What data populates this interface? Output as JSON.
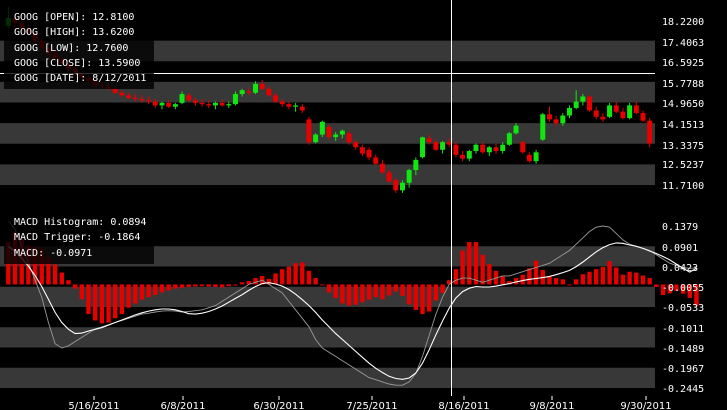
{
  "symbol": "GOOG",
  "colors": {
    "background": "#000000",
    "band": "#383838",
    "up": "#11e611",
    "down": "#e60000",
    "hist": "#e60000",
    "macd_line": "#ffffff",
    "trigger_line": "#9a9a9a",
    "crosshair": "#ffffff",
    "text": "#ffffff"
  },
  "price_panel": {
    "labels": [
      "GOOG [OPEN]: 12.8100",
      "GOOG [HIGH]: 13.6200",
      "GOOG [LOW]: 12.7600",
      "GOOG [CLOSE]: 13.5900",
      "GOOG [DATE]: 8/12/2011"
    ]
  },
  "macd_panel": {
    "labels": [
      "MACD Histogram: 0.0894",
      "MACD Trigger: -0.1864",
      "MACD: -0.0971"
    ]
  },
  "chart_data": [
    {
      "type": "candlestick",
      "ylim": [
        11.2,
        18.5
      ],
      "y_ticks": [
        "18.2200",
        "17.4063",
        "16.5925",
        "15.7788",
        "14.9650",
        "14.1513",
        "13.3375",
        "12.5237",
        "11.7100"
      ],
      "x_ticks": [
        "5/16/2011",
        "6/8/2011",
        "6/30/2011",
        "7/25/2011",
        "8/16/2011",
        "9/8/2011",
        "9/30/2011"
      ],
      "candles": [
        {
          "o": 18.0,
          "h": 18.7,
          "l": 17.9,
          "c": 18.3
        },
        {
          "o": 18.3,
          "h": 18.5,
          "l": 17.9,
          "c": 18.1
        },
        {
          "o": 18.1,
          "h": 18.2,
          "l": 17.8,
          "c": 17.9
        },
        {
          "o": 17.9,
          "h": 18.0,
          "l": 17.6,
          "c": 17.7
        },
        {
          "o": 17.7,
          "h": 17.8,
          "l": 17.3,
          "c": 17.4
        },
        {
          "o": 17.4,
          "h": 17.5,
          "l": 17.0,
          "c": 17.1
        },
        {
          "o": 17.1,
          "h": 17.2,
          "l": 16.8,
          "c": 16.9
        },
        {
          "o": 16.9,
          "h": 17.0,
          "l": 16.6,
          "c": 16.7
        },
        {
          "o": 16.7,
          "h": 16.8,
          "l": 16.4,
          "c": 16.5
        },
        {
          "o": 16.5,
          "h": 16.6,
          "l": 16.2,
          "c": 16.3
        },
        {
          "o": 16.3,
          "h": 16.4,
          "l": 16.0,
          "c": 16.1
        },
        {
          "o": 16.1,
          "h": 16.2,
          "l": 15.85,
          "c": 15.95
        },
        {
          "o": 15.95,
          "h": 16.05,
          "l": 15.7,
          "c": 15.8
        },
        {
          "o": 15.8,
          "h": 15.9,
          "l": 15.55,
          "c": 15.65
        },
        {
          "o": 15.65,
          "h": 15.8,
          "l": 15.5,
          "c": 15.6
        },
        {
          "o": 15.6,
          "h": 15.7,
          "l": 15.45,
          "c": 15.5
        },
        {
          "o": 15.5,
          "h": 15.6,
          "l": 15.3,
          "c": 15.35
        },
        {
          "o": 15.35,
          "h": 15.45,
          "l": 15.2,
          "c": 15.25
        },
        {
          "o": 15.25,
          "h": 15.35,
          "l": 15.1,
          "c": 15.15
        },
        {
          "o": 15.15,
          "h": 15.3,
          "l": 15.0,
          "c": 15.1
        },
        {
          "o": 15.1,
          "h": 15.25,
          "l": 14.95,
          "c": 15.05
        },
        {
          "o": 15.05,
          "h": 15.2,
          "l": 14.9,
          "c": 15.0
        },
        {
          "o": 15.0,
          "h": 15.1,
          "l": 14.75,
          "c": 14.85
        },
        {
          "o": 14.85,
          "h": 15.0,
          "l": 14.7,
          "c": 14.95
        },
        {
          "o": 14.95,
          "h": 15.05,
          "l": 14.75,
          "c": 14.8
        },
        {
          "o": 14.8,
          "h": 14.95,
          "l": 14.7,
          "c": 14.9
        },
        {
          "o": 14.95,
          "h": 15.4,
          "l": 14.9,
          "c": 15.3
        },
        {
          "o": 15.25,
          "h": 15.35,
          "l": 15.0,
          "c": 15.05
        },
        {
          "o": 15.05,
          "h": 15.15,
          "l": 14.85,
          "c": 14.95
        },
        {
          "o": 14.95,
          "h": 15.1,
          "l": 14.8,
          "c": 14.9
        },
        {
          "o": 14.9,
          "h": 15.05,
          "l": 14.75,
          "c": 14.85
        },
        {
          "o": 14.85,
          "h": 15.0,
          "l": 14.7,
          "c": 14.95
        },
        {
          "o": 14.95,
          "h": 15.1,
          "l": 14.8,
          "c": 14.85
        },
        {
          "o": 14.85,
          "h": 15.0,
          "l": 14.75,
          "c": 14.9
        },
        {
          "o": 14.9,
          "h": 15.4,
          "l": 14.85,
          "c": 15.3
        },
        {
          "o": 15.3,
          "h": 15.5,
          "l": 15.2,
          "c": 15.45
        },
        {
          "o": 15.4,
          "h": 15.55,
          "l": 15.25,
          "c": 15.35
        },
        {
          "o": 15.35,
          "h": 15.8,
          "l": 15.3,
          "c": 15.7
        },
        {
          "o": 15.7,
          "h": 15.85,
          "l": 15.45,
          "c": 15.5
        },
        {
          "o": 15.5,
          "h": 15.6,
          "l": 15.2,
          "c": 15.25
        },
        {
          "o": 15.25,
          "h": 15.35,
          "l": 14.95,
          "c": 15.0
        },
        {
          "o": 15.0,
          "h": 15.1,
          "l": 14.8,
          "c": 14.9
        },
        {
          "o": 14.9,
          "h": 15.0,
          "l": 14.7,
          "c": 14.8
        },
        {
          "o": 14.8,
          "h": 14.95,
          "l": 14.6,
          "c": 14.85
        },
        {
          "o": 14.8,
          "h": 14.9,
          "l": 14.55,
          "c": 14.65
        },
        {
          "o": 14.3,
          "h": 14.4,
          "l": 13.3,
          "c": 13.4
        },
        {
          "o": 13.4,
          "h": 13.75,
          "l": 13.35,
          "c": 13.7
        },
        {
          "o": 13.7,
          "h": 14.25,
          "l": 13.6,
          "c": 14.2
        },
        {
          "o": 14.0,
          "h": 14.1,
          "l": 13.5,
          "c": 13.6
        },
        {
          "o": 13.6,
          "h": 13.8,
          "l": 13.45,
          "c": 13.7
        },
        {
          "o": 13.7,
          "h": 13.9,
          "l": 13.55,
          "c": 13.85
        },
        {
          "o": 13.75,
          "h": 13.85,
          "l": 13.3,
          "c": 13.4
        },
        {
          "o": 13.4,
          "h": 13.5,
          "l": 13.1,
          "c": 13.2
        },
        {
          "o": 13.2,
          "h": 13.3,
          "l": 12.85,
          "c": 12.95
        },
        {
          "o": 13.1,
          "h": 13.2,
          "l": 12.7,
          "c": 12.8
        },
        {
          "o": 12.8,
          "h": 12.9,
          "l": 12.5,
          "c": 12.55
        },
        {
          "o": 12.55,
          "h": 12.7,
          "l": 12.15,
          "c": 12.2
        },
        {
          "o": 12.2,
          "h": 12.3,
          "l": 11.8,
          "c": 11.85
        },
        {
          "o": 11.9,
          "h": 12.0,
          "l": 11.4,
          "c": 11.5
        },
        {
          "o": 11.5,
          "h": 11.9,
          "l": 11.4,
          "c": 11.8
        },
        {
          "o": 11.8,
          "h": 12.35,
          "l": 11.6,
          "c": 12.3
        },
        {
          "o": 12.3,
          "h": 12.8,
          "l": 12.1,
          "c": 12.7
        },
        {
          "o": 12.81,
          "h": 13.62,
          "l": 12.76,
          "c": 13.59
        },
        {
          "o": 13.55,
          "h": 13.7,
          "l": 13.3,
          "c": 13.4
        },
        {
          "o": 13.4,
          "h": 13.5,
          "l": 13.05,
          "c": 13.1
        },
        {
          "o": 13.1,
          "h": 13.45,
          "l": 12.95,
          "c": 13.4
        },
        {
          "o": 13.4,
          "h": 13.55,
          "l": 13.2,
          "c": 13.3
        },
        {
          "o": 13.3,
          "h": 13.4,
          "l": 12.8,
          "c": 12.9
        },
        {
          "o": 12.9,
          "h": 13.05,
          "l": 12.65,
          "c": 12.75
        },
        {
          "o": 12.75,
          "h": 13.1,
          "l": 12.65,
          "c": 13.05
        },
        {
          "o": 13.05,
          "h": 13.35,
          "l": 12.95,
          "c": 13.3
        },
        {
          "o": 13.3,
          "h": 13.4,
          "l": 12.95,
          "c": 13.0
        },
        {
          "o": 13.0,
          "h": 13.25,
          "l": 12.85,
          "c": 13.2
        },
        {
          "o": 13.2,
          "h": 13.35,
          "l": 12.95,
          "c": 13.05
        },
        {
          "o": 13.05,
          "h": 13.4,
          "l": 12.95,
          "c": 13.3
        },
        {
          "o": 13.3,
          "h": 13.8,
          "l": 13.25,
          "c": 13.75
        },
        {
          "o": 13.75,
          "h": 14.15,
          "l": 13.7,
          "c": 14.05
        },
        {
          "o": 13.4,
          "h": 13.45,
          "l": 12.95,
          "c": 13.0
        },
        {
          "o": 12.9,
          "h": 13.0,
          "l": 12.6,
          "c": 12.65
        },
        {
          "o": 12.65,
          "h": 13.1,
          "l": 12.55,
          "c": 13.0
        },
        {
          "o": 13.5,
          "h": 14.55,
          "l": 13.45,
          "c": 14.5
        },
        {
          "o": 14.5,
          "h": 14.8,
          "l": 14.2,
          "c": 14.3
        },
        {
          "o": 14.3,
          "h": 14.45,
          "l": 14.05,
          "c": 14.15
        },
        {
          "o": 14.15,
          "h": 14.55,
          "l": 14.05,
          "c": 14.45
        },
        {
          "o": 14.45,
          "h": 14.85,
          "l": 14.35,
          "c": 14.75
        },
        {
          "o": 14.75,
          "h": 15.45,
          "l": 14.7,
          "c": 15.0
        },
        {
          "o": 15.0,
          "h": 15.3,
          "l": 14.85,
          "c": 15.2
        },
        {
          "o": 15.2,
          "h": 15.25,
          "l": 14.6,
          "c": 14.65
        },
        {
          "o": 14.65,
          "h": 14.8,
          "l": 14.3,
          "c": 14.4
        },
        {
          "o": 14.4,
          "h": 14.55,
          "l": 14.2,
          "c": 14.3
        },
        {
          "o": 14.4,
          "h": 14.95,
          "l": 14.35,
          "c": 14.85
        },
        {
          "o": 14.85,
          "h": 15.0,
          "l": 14.55,
          "c": 14.6
        },
        {
          "o": 14.6,
          "h": 14.75,
          "l": 14.3,
          "c": 14.35
        },
        {
          "o": 14.35,
          "h": 14.95,
          "l": 14.3,
          "c": 14.85
        },
        {
          "o": 14.85,
          "h": 15.0,
          "l": 14.5,
          "c": 14.55
        },
        {
          "o": 14.55,
          "h": 14.65,
          "l": 14.2,
          "c": 14.25
        },
        {
          "o": 14.25,
          "h": 14.35,
          "l": 13.2,
          "c": 13.35
        }
      ]
    },
    {
      "type": "macd",
      "ylim": [
        -0.26,
        0.16
      ],
      "y_ticks": [
        "0.1379",
        "0.0901",
        "0.0423",
        "-0.0055",
        "-0.0533",
        "-0.1011",
        "-0.1489",
        "-0.1967",
        "-0.2445"
      ],
      "histogram": [
        0.1,
        0.124,
        0.106,
        0.092,
        0.089,
        0.085,
        0.064,
        0.047,
        0.028,
        0.01,
        -0.01,
        -0.035,
        -0.07,
        -0.085,
        -0.092,
        -0.09,
        -0.08,
        -0.07,
        -0.055,
        -0.045,
        -0.036,
        -0.03,
        -0.025,
        -0.019,
        -0.014,
        -0.01,
        -0.008,
        -0.006,
        -0.005,
        -0.004,
        -0.005,
        -0.006,
        -0.007,
        -0.004,
        0.0,
        0.005,
        0.008,
        0.015,
        0.02,
        0.013,
        0.026,
        0.036,
        0.042,
        0.05,
        0.052,
        0.032,
        0.015,
        0.0,
        -0.019,
        -0.032,
        -0.045,
        -0.05,
        -0.048,
        -0.042,
        -0.036,
        -0.03,
        -0.035,
        -0.026,
        -0.017,
        -0.027,
        -0.047,
        -0.06,
        -0.07,
        -0.064,
        -0.038,
        -0.02,
        0.01,
        0.036,
        0.08,
        0.1,
        0.1,
        0.07,
        0.048,
        0.032,
        0.019,
        0.008,
        0.015,
        0.023,
        0.038,
        0.056,
        0.034,
        0.02,
        0.015,
        0.012,
        0.0,
        0.012,
        0.024,
        0.03,
        0.036,
        0.041,
        0.055,
        0.04,
        0.023,
        0.03,
        0.028,
        0.021,
        0.015,
        -0.006,
        -0.025,
        -0.021,
        -0.015,
        -0.022,
        -0.032,
        -0.05
      ],
      "macd": [
        0.09,
        0.078,
        0.062,
        0.043,
        0.021,
        -0.005,
        -0.035,
        -0.066,
        -0.09,
        -0.106,
        -0.116,
        -0.115,
        -0.11,
        -0.106,
        -0.102,
        -0.096,
        -0.09,
        -0.084,
        -0.078,
        -0.072,
        -0.067,
        -0.063,
        -0.06,
        -0.058,
        -0.058,
        -0.06,
        -0.064,
        -0.069,
        -0.07,
        -0.068,
        -0.064,
        -0.058,
        -0.051,
        -0.042,
        -0.033,
        -0.024,
        -0.014,
        -0.005,
        0.002,
        0.004,
        0.001,
        -0.004,
        -0.012,
        -0.023,
        -0.036,
        -0.05,
        -0.066,
        -0.084,
        -0.1,
        -0.116,
        -0.13,
        -0.144,
        -0.158,
        -0.172,
        -0.186,
        -0.198,
        -0.208,
        -0.217,
        -0.222,
        -0.224,
        -0.221,
        -0.209,
        -0.186,
        -0.154,
        -0.119,
        -0.086,
        -0.056,
        -0.032,
        -0.017,
        -0.009,
        -0.005,
        -0.006,
        -0.006,
        -0.004,
        -0.001,
        0.002,
        0.006,
        0.009,
        0.012,
        0.014,
        0.016,
        0.019,
        0.023,
        0.028,
        0.033,
        0.042,
        0.053,
        0.065,
        0.077,
        0.087,
        0.094,
        0.098,
        0.097,
        0.093,
        0.09,
        0.085,
        0.079,
        0.073,
        0.066,
        0.058,
        0.048,
        0.038,
        0.029,
        0.038
      ],
      "trigger": [
        0.15,
        0.13,
        0.09,
        0.05,
        0.01,
        -0.03,
        -0.09,
        -0.14,
        -0.15,
        -0.145,
        -0.135,
        -0.125,
        -0.115,
        -0.105,
        -0.1,
        -0.095,
        -0.09,
        -0.085,
        -0.08,
        -0.075,
        -0.07,
        -0.068,
        -0.065,
        -0.063,
        -0.062,
        -0.063,
        -0.065,
        -0.064,
        -0.062,
        -0.06,
        -0.055,
        -0.05,
        -0.04,
        -0.03,
        -0.02,
        -0.01,
        0.0,
        0.005,
        0.01,
        0.0,
        -0.01,
        -0.02,
        -0.04,
        -0.06,
        -0.08,
        -0.1,
        -0.13,
        -0.15,
        -0.16,
        -0.17,
        -0.18,
        -0.19,
        -0.2,
        -0.21,
        -0.22,
        -0.225,
        -0.23,
        -0.235,
        -0.238,
        -0.238,
        -0.23,
        -0.21,
        -0.17,
        -0.12,
        -0.07,
        -0.03,
        0.0,
        0.01,
        0.015,
        0.015,
        0.01,
        0.005,
        0.01,
        0.015,
        0.02,
        0.02,
        0.025,
        0.03,
        0.035,
        0.04,
        0.045,
        0.05,
        0.06,
        0.07,
        0.08,
        0.095,
        0.11,
        0.125,
        0.135,
        0.138,
        0.135,
        0.12,
        0.105,
        0.095,
        0.09,
        0.085,
        0.08,
        0.07,
        0.06,
        0.05,
        0.045,
        0.04,
        0.038,
        0.039
      ]
    }
  ]
}
